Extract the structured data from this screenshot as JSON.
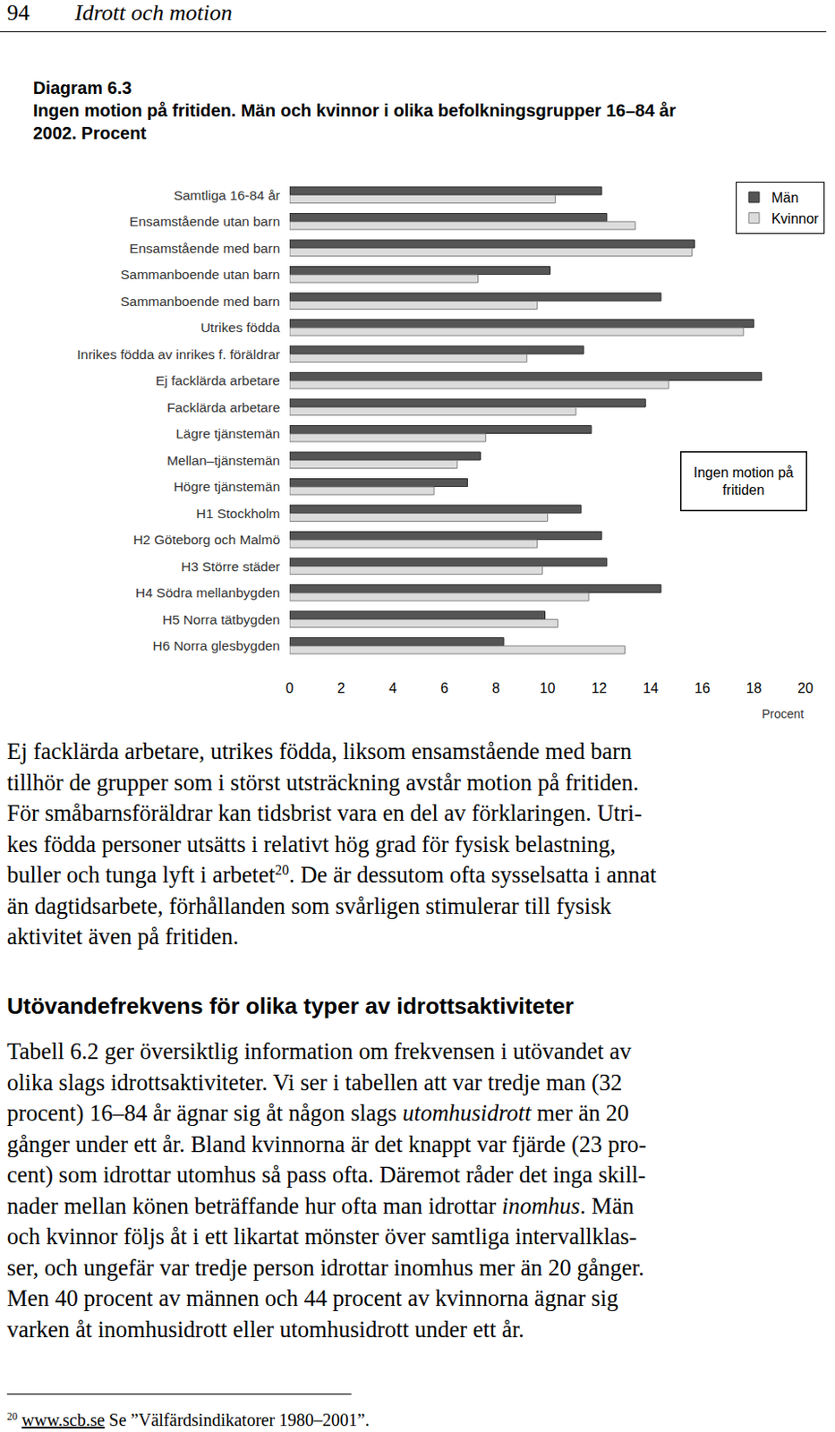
{
  "header": {
    "page_number": "94",
    "running_title": "Idrott och motion"
  },
  "diagram": {
    "title_lines": [
      "Diagram 6.3",
      "Ingen motion på fritiden. Män och kvinnor i olika befolkningsgrupper 16–84 år",
      "2002. Procent"
    ]
  },
  "chart_data": {
    "type": "bar",
    "orientation": "horizontal",
    "categories": [
      "Samtliga 16-84 år",
      "Ensamstående utan barn",
      "Ensamstående med barn",
      "Sammanboende utan barn",
      "Sammanboende med barn",
      "Utrikes födda",
      "Inrikes födda av inrikes f. föräldrar",
      "Ej facklärda arbetare",
      "Facklärda arbetare",
      "Lägre tjänstemän",
      "Mellan–tjänstemän",
      "Högre tjänstemän",
      "H1 Stockholm",
      "H2 Göteborg och Malmö",
      "H3 Större städer",
      "H4 Södra mellanbygden",
      "H5 Norra tätbygden",
      "H6 Norra glesbygden"
    ],
    "series": [
      {
        "name": "Män",
        "color": "#555555",
        "values": [
          12.1,
          12.3,
          15.7,
          10.1,
          14.4,
          18.0,
          11.4,
          18.3,
          13.8,
          11.7,
          7.4,
          6.9,
          11.3,
          12.1,
          12.3,
          14.4,
          9.9,
          8.3
        ]
      },
      {
        "name": "Kvinnor",
        "color": "#dcdcdc",
        "values": [
          10.3,
          13.4,
          15.6,
          7.3,
          9.6,
          17.6,
          9.2,
          14.7,
          11.1,
          7.6,
          6.5,
          5.6,
          10.0,
          9.6,
          9.8,
          11.6,
          10.4,
          13.0
        ]
      }
    ],
    "xlim": [
      0,
      20
    ],
    "xticks": [
      0,
      2,
      4,
      6,
      8,
      10,
      12,
      14,
      16,
      18,
      20
    ],
    "xlabel": "Procent",
    "legend": "top right",
    "grid": false,
    "annotations": [
      {
        "lines": [
          "Ingen motion på",
          "fritiden"
        ]
      }
    ]
  },
  "body": [
    {
      "kind": "paragraph",
      "lines": [
        [
          "Ej facklärda arbetare, utrikes födda, liksom ensamstående med barn"
        ],
        [
          "tillhör de grupper som i störst utsträckning avstår motion på fritiden."
        ],
        [
          "För småbarnsföräldrar kan tidsbrist vara en del av förklaringen. Utri-"
        ],
        [
          "kes födda personer utsätts i relativt hög grad för fysisk belastning,"
        ],
        [
          "buller och tunga lyft i arbetet",
          {
            "text": "20",
            "style": "sup"
          },
          ". De är dessutom ofta sysselsatta i annat"
        ],
        [
          "än dagtidsarbete, förhållanden som svårligen stimulerar till fysisk"
        ],
        [
          "aktivitet även på fritiden."
        ]
      ]
    },
    {
      "kind": "heading",
      "text": "Utövandefrekvens för olika typer av idrottsaktiviteter"
    },
    {
      "kind": "paragraph",
      "lines": [
        [
          "Tabell 6.2 ger översiktlig information om frekvensen i utövandet av"
        ],
        [
          "olika slags idrottsaktiviteter. Vi ser i tabellen att var tredje man (32"
        ],
        [
          "procent) 16–84 år ägnar sig åt någon slags ",
          {
            "text": "utomhusidrott",
            "style": "italic"
          },
          " mer än 20"
        ],
        [
          "gånger under ett år. Bland kvinnorna är det knappt var fjärde (23 pro-"
        ],
        [
          "cent) som idrottar utomhus så pass ofta. Däremot råder det inga skill-"
        ],
        [
          "nader mellan könen beträffande hur ofta man idrottar ",
          {
            "text": "inomhus",
            "style": "italic"
          },
          ". Män"
        ],
        [
          "och kvinnor följs åt i ett likartat mönster över samtliga intervallklas-"
        ],
        [
          "ser, och ungefär var tredje person idrottar inomhus mer än 20 gånger."
        ],
        [
          "Men 40 procent av männen och 44 procent av kvinnorna ägnar sig"
        ],
        [
          "varken åt inomhusidrott eller utomhusidrott under ett år."
        ]
      ]
    }
  ],
  "footnote": {
    "number": "20",
    "link": "www.scb.se",
    "text": " Se ”Välfärdsindikatorer 1980–2001”."
  }
}
